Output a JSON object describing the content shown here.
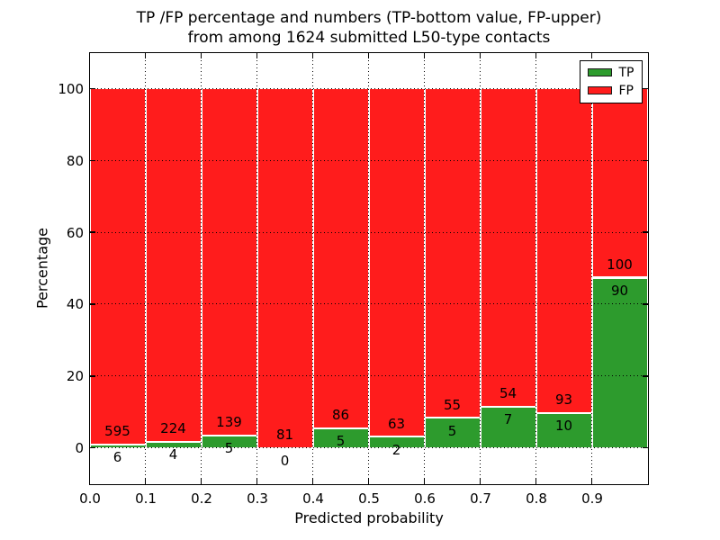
{
  "chart_data": {
    "type": "bar",
    "stacked": true,
    "title": "TP /FP percentage and numbers (TP-bottom value, FP-upper)\nfrom among 1624 submitted L50-type contacts",
    "title_line1": "TP /FP percentage and numbers (TP-bottom value, FP-upper)",
    "title_line2": "from among 1624 submitted L50-type contacts",
    "xlabel": "Predicted probability",
    "ylabel": "Percentage",
    "total_contacts": 1624,
    "xlim": [
      0.0,
      1.0
    ],
    "ylim": [
      -10,
      110
    ],
    "bin_width": 0.1,
    "xticks": [
      "0.0",
      "0.1",
      "0.2",
      "0.3",
      "0.4",
      "0.5",
      "0.6",
      "0.7",
      "0.8",
      "0.9"
    ],
    "yticks": [
      0,
      20,
      40,
      60,
      80,
      100
    ],
    "grid": "dotted",
    "series": [
      {
        "name": "TP",
        "color": "#2d9b2d",
        "counts": [
          6,
          4,
          5,
          0,
          5,
          2,
          5,
          7,
          10,
          90
        ]
      },
      {
        "name": "FP",
        "color": "#ff1c1c",
        "counts": [
          595,
          224,
          139,
          81,
          86,
          63,
          55,
          54,
          93,
          100
        ]
      }
    ],
    "tp_percent_of_bin": [
      1.0,
      1.75,
      3.47,
      0.0,
      5.49,
      3.08,
      8.33,
      11.48,
      9.71,
      47.37
    ],
    "legend": {
      "position": "upper right",
      "entries": [
        {
          "label": "TP",
          "color": "#2d9b2d"
        },
        {
          "label": "FP",
          "color": "#ff1c1c"
        }
      ]
    }
  },
  "colors": {
    "bar_edge": "#ffffff",
    "grid": "#000000",
    "frame": "#000000",
    "text": "#000000",
    "background": "#ffffff"
  }
}
